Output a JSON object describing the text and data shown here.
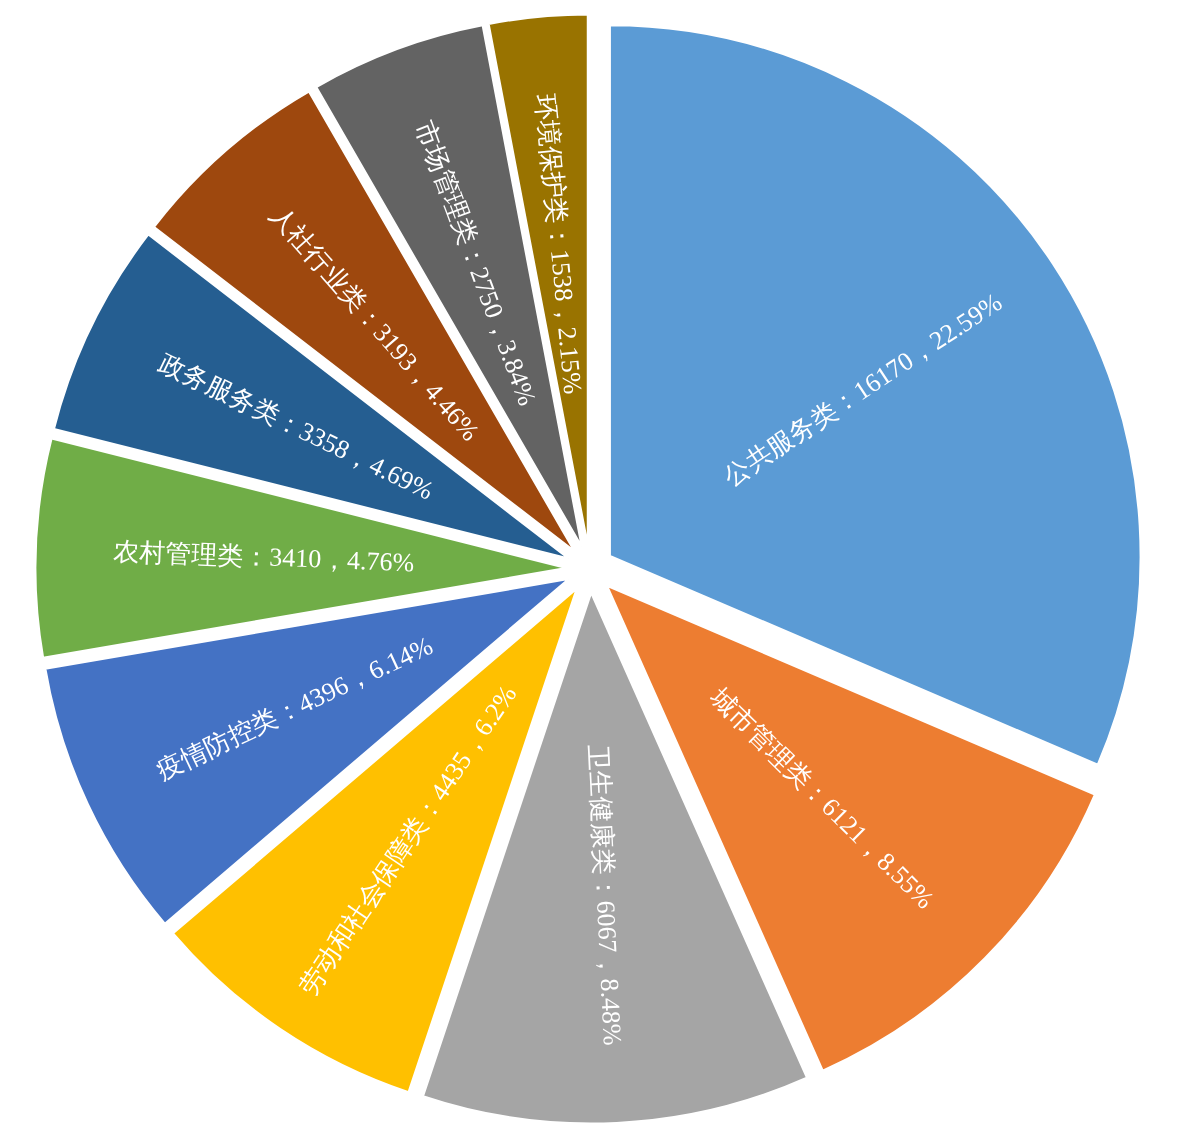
{
  "chart_data": {
    "type": "pie",
    "categories": [
      "公共服务类",
      "城市管理类",
      "卫生健康类",
      "劳动和社会保障类",
      "疫情防控类",
      "农村管理类",
      "政务服务类",
      "人社行业类",
      "市场管理类",
      "环境保护类"
    ],
    "values": [
      16170,
      6121,
      6067,
      4435,
      4396,
      3410,
      3358,
      3193,
      2750,
      1538
    ],
    "colors": [
      "#5b9bd5",
      "#ed7d31",
      "#a5a5a5",
      "#ffc000",
      "#4472c4",
      "#70ad47",
      "#255e91",
      "#9e480e",
      "#636363",
      "#997300"
    ],
    "value_labels": [
      "：16170，22.59%",
      "：6121，8.55%",
      "：6067，8.48%",
      "：4435，6.2%",
      "：4396，6.14%",
      "：3410，4.76%",
      "：3358，4.69%",
      "：3193，4.46%",
      "：2750，3.84%",
      "：1538，2.15%"
    ]
  }
}
